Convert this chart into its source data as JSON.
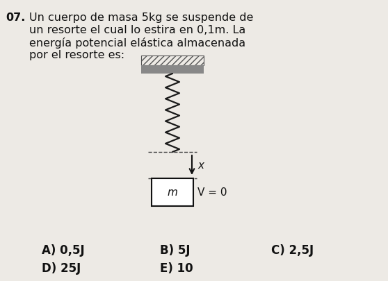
{
  "question_number": "07.",
  "question_text_lines": [
    "Un cuerpo de masa 5kg se suspende de",
    "un resorte el cual lo estira en 0,1m. La",
    "energía potencial elástica almacenada",
    "por el resorte es:"
  ],
  "answers_row1": [
    "A) 0,5J",
    "B) 5J",
    "C) 2,5J"
  ],
  "answers_row2": [
    "D) 25J",
    "E) 10"
  ],
  "label_x": "x",
  "label_v": "V = 0",
  "label_m": "m",
  "bg_color": "#edeae5",
  "text_color": "#111111",
  "spring_color": "#1a1a1a",
  "box_color": "#111111",
  "ceiling_color": "#888888",
  "ceiling_hatch_color": "#555555",
  "arrow_color": "#111111",
  "dashed_color": "#444444"
}
